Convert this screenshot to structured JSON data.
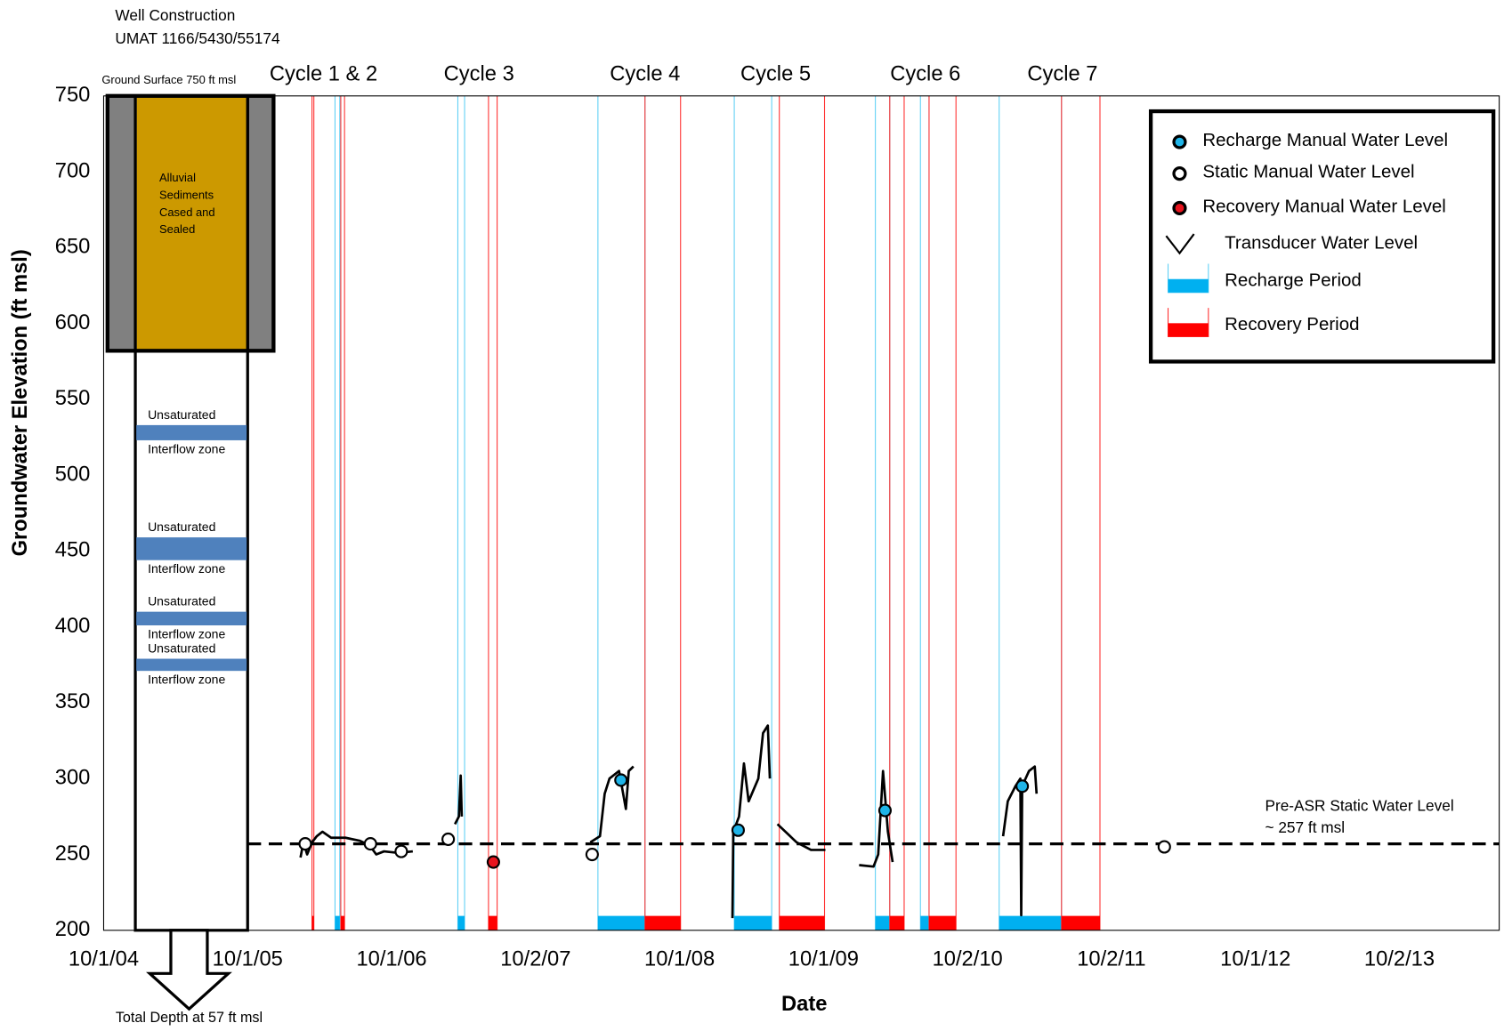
{
  "chart_data": {
    "type": "line",
    "x_label": "Date",
    "y_label": "Groundwater Elevation (ft msl)",
    "xlim": [
      2004.75,
      2014.443
    ],
    "xticks": [
      {
        "value": 2004.75,
        "label": "10/1/04"
      },
      {
        "value": 2005.75,
        "label": "10/1/05"
      },
      {
        "value": 2006.75,
        "label": "10/1/06"
      },
      {
        "value": 2007.75,
        "label": "10/2/07"
      },
      {
        "value": 2008.75,
        "label": "10/1/08"
      },
      {
        "value": 2009.75,
        "label": "10/1/09"
      },
      {
        "value": 2010.75,
        "label": "10/2/10"
      },
      {
        "value": 2011.75,
        "label": "10/2/11"
      },
      {
        "value": 2012.75,
        "label": "10/1/12"
      },
      {
        "value": 2013.75,
        "label": "10/2/13"
      }
    ],
    "ylim": [
      200,
      750
    ],
    "yticks": [
      200,
      250,
      300,
      350,
      400,
      450,
      500,
      550,
      600,
      650,
      700,
      750
    ],
    "grid": true,
    "legend": "upper right",
    "series": [
      {
        "name": "Transducer Water Level",
        "color": "#000000",
        "marker": "line",
        "x": [
          2006.117,
          2006.137,
          2006.163,
          2006.197,
          2006.23,
          2006.27,
          2006.33,
          2006.43,
          2006.53,
          2006.597,
          2006.643,
          2006.697,
          2006.797,
          2006.897,
          null,
          2007.19,
          2007.217,
          2007.23,
          2007.237,
          null,
          2008.13,
          2008.197,
          2008.23,
          2008.263,
          2008.33,
          2008.377,
          2008.397,
          2008.43,
          null,
          2009.117,
          2009.123,
          2009.163,
          2009.197,
          2009.23,
          2009.297,
          2009.33,
          2009.363,
          2009.377,
          null,
          2009.43,
          2009.563,
          2009.663,
          2009.763,
          null,
          2009.997,
          2010.097,
          2010.13,
          2010.163,
          2010.197,
          2010.23,
          null,
          2010.997,
          2011.03,
          2011.083,
          2011.117,
          2011.123,
          2011.13,
          2011.177,
          2011.217,
          2011.23
        ],
        "values": [
          248,
          258,
          250,
          258,
          262,
          265,
          261,
          261,
          259,
          256,
          250,
          252,
          251,
          252,
          null,
          270,
          275,
          302,
          275,
          null,
          258,
          262,
          290,
          300,
          305,
          280,
          305,
          308,
          null,
          208,
          265,
          275,
          310,
          285,
          300,
          330,
          335,
          300,
          null,
          270,
          258,
          253,
          253,
          null,
          243,
          242,
          250,
          305,
          265,
          245,
          null,
          262,
          285,
          295,
          300,
          210,
          295,
          305,
          308,
          290
        ]
      },
      {
        "name": "Recharge Manual Water Level",
        "color": "#1fb4e8",
        "marker": "point",
        "x": [
          2008.343,
          2009.157,
          2010.177,
          2011.13
        ],
        "values": [
          299,
          266,
          279,
          295
        ]
      },
      {
        "name": "Static Manual Water Level",
        "color": "#ffffff",
        "marker": "point",
        "x": [
          2006.15,
          2006.603,
          2006.817,
          2007.143,
          2008.143,
          2012.117
        ],
        "values": [
          257,
          257,
          252,
          260,
          250,
          255
        ]
      },
      {
        "name": "Recovery Manual Water Level",
        "color": "#e8141e",
        "marker": "point",
        "x": [
          2007.457
        ],
        "values": [
          245
        ]
      }
    ],
    "periods": [
      {
        "name": "Recharge Period",
        "color": "#00b0f0",
        "line_color": "#5fd0f5",
        "ranges": [
          [
            2006.357,
            2006.39
          ],
          [
            2007.21,
            2007.257
          ],
          [
            2008.183,
            2008.51
          ],
          [
            2009.13,
            2009.39
          ],
          [
            2010.11,
            2010.21
          ],
          [
            2010.423,
            2010.483
          ],
          [
            2010.97,
            2011.403
          ]
        ]
      },
      {
        "name": "Recovery Period",
        "color": "#ff0000",
        "line_color": "#ff3030",
        "ranges": [
          [
            2006.197,
            2006.21
          ],
          [
            2006.397,
            2006.423
          ],
          [
            2007.423,
            2007.483
          ],
          [
            2008.51,
            2008.757
          ],
          [
            2009.443,
            2009.757
          ],
          [
            2010.21,
            2010.31
          ],
          [
            2010.483,
            2010.67
          ],
          [
            2011.403,
            2011.67
          ]
        ]
      }
    ],
    "cycles": [
      {
        "label": "Cycle 1 & 2",
        "x": 2006.277
      },
      {
        "label": "Cycle 3",
        "x": 2007.357
      },
      {
        "label": "Cycle 4",
        "x": 2008.51
      },
      {
        "label": "Cycle 5",
        "x": 2009.417
      },
      {
        "label": "Cycle 6",
        "x": 2010.457
      },
      {
        "label": "Cycle 7",
        "x": 2011.41
      }
    ],
    "reference": {
      "value": 257,
      "labels": [
        "Pre-ASR Static Water Level",
        "~ 257 ft msl"
      ]
    },
    "well": {
      "title": "Well Construction",
      "id": "UMAT 1166/5430/55174",
      "ground_label": "Ground Surface 750 ft msl",
      "top": 750,
      "casing_bottom": 582,
      "hole_bottom": 200,
      "sediment_labels": [
        "Alluvial",
        "Sediments",
        "Cased and",
        "Sealed"
      ],
      "zones": [
        {
          "top": 533,
          "bottom": 523,
          "labels": [
            "Unsaturated",
            "Interflow zone"
          ]
        },
        {
          "top": 459,
          "bottom": 444,
          "labels": [
            "Unsaturated",
            "Interflow zone"
          ]
        },
        {
          "top": 410,
          "bottom": 401,
          "labels": [
            "Unsaturated",
            "Interflow zone"
          ]
        },
        {
          "top": 379,
          "bottom": 371,
          "labels": [
            "Unsaturated",
            "Interflow zone"
          ]
        }
      ],
      "total_depth_label": "Total Depth at 57 ft msl"
    }
  }
}
